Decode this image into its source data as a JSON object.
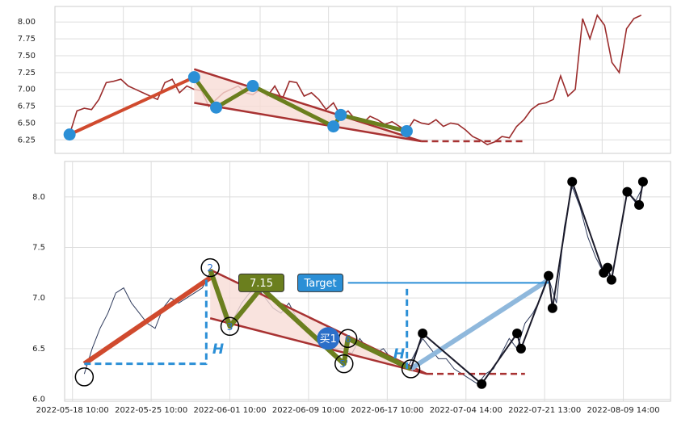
{
  "chart_data": [
    {
      "type": "line",
      "color": "#9b2c2c",
      "xlim": [
        -2,
        82
      ],
      "ylim": [
        6.05,
        8.23
      ],
      "grid": true,
      "yticks": [
        {
          "value": 6.25,
          "label": "6.25"
        },
        {
          "value": 6.5,
          "label": "6.50"
        },
        {
          "value": 6.75,
          "label": "6.75"
        },
        {
          "value": 7.0,
          "label": "7.00"
        },
        {
          "value": 7.25,
          "label": "7.25"
        },
        {
          "value": 7.5,
          "label": "7.50"
        },
        {
          "value": 7.75,
          "label": "7.75"
        },
        {
          "value": 8.0,
          "label": "8.00"
        }
      ],
      "values": [
        6.33,
        6.68,
        6.72,
        6.7,
        6.85,
        7.1,
        7.12,
        7.15,
        7.05,
        7.0,
        6.95,
        6.9,
        6.85,
        7.1,
        7.15,
        6.95,
        7.05,
        7.0,
        6.98,
        6.75,
        6.85,
        6.95,
        7.0,
        7.05,
        6.95,
        6.92,
        7.0,
        6.9,
        7.05,
        6.85,
        7.12,
        7.1,
        6.9,
        6.95,
        6.85,
        6.7,
        6.8,
        6.6,
        6.68,
        6.55,
        6.5,
        6.6,
        6.55,
        6.48,
        6.52,
        6.45,
        6.38,
        6.55,
        6.5,
        6.48,
        6.55,
        6.45,
        6.5,
        6.48,
        6.4,
        6.3,
        6.25,
        6.18,
        6.22,
        6.3,
        6.28,
        6.45,
        6.55,
        6.7,
        6.78,
        6.8,
        6.85,
        7.2,
        6.9,
        7.0,
        8.05,
        7.75,
        8.1,
        7.95,
        7.4,
        7.25,
        7.9,
        8.05,
        8.1
      ],
      "lines": [
        {
          "x": [
            17,
            48,
            17
          ],
          "y": [
            7.3,
            6.23,
            6.8
          ],
          "color": "#f8dcd6",
          "fill": true
        },
        {
          "x": [
            0,
            17
          ],
          "y": [
            6.33,
            7.18
          ],
          "color": "#d04a2e",
          "width": 4
        },
        {
          "x": [
            17,
            48
          ],
          "y": [
            7.3,
            6.23
          ],
          "color": "#a83232",
          "width": 2.5
        },
        {
          "x": [
            17,
            48
          ],
          "y": [
            6.8,
            6.23
          ],
          "color": "#a83232",
          "width": 2.5
        },
        {
          "x": [
            48,
            62
          ],
          "y": [
            6.23,
            6.23
          ],
          "color": "#a83232",
          "width": 2.5,
          "dashed": true
        },
        {
          "x": [
            17,
            20,
            25,
            36,
            37,
            46
          ],
          "y": [
            7.18,
            6.73,
            7.05,
            6.45,
            6.62,
            6.38
          ],
          "color": "#6b7f1e",
          "width": 5
        }
      ],
      "points": {
        "x": [
          0,
          17,
          20,
          25,
          36,
          37,
          46
        ],
        "y": [
          6.33,
          7.18,
          6.73,
          7.05,
          6.45,
          6.62,
          6.38
        ],
        "color": "#2b8fd6"
      }
    },
    {
      "type": "line",
      "color": "#2f3b5c",
      "xlim": [
        -2,
        152
      ],
      "ylim": [
        5.98,
        8.35
      ],
      "grid": true,
      "yticks": [
        {
          "value": 6.0,
          "label": "6.0"
        },
        {
          "value": 6.5,
          "label": "6.5"
        },
        {
          "value": 7.0,
          "label": "7.0"
        },
        {
          "value": 7.5,
          "label": "7.5"
        },
        {
          "value": 8.0,
          "label": "8.0"
        }
      ],
      "xticks": [
        {
          "value": 0,
          "label": "2022-05-18 10:00"
        },
        {
          "value": 20,
          "label": "2022-05-25 10:00"
        },
        {
          "value": 40,
          "label": "2022-06-01 10:00"
        },
        {
          "value": 60,
          "label": "2022-06-09 10:00"
        },
        {
          "value": 80,
          "label": "2022-06-17 10:00"
        },
        {
          "value": 100,
          "label": "2022-07-04 14:00"
        },
        {
          "value": 120,
          "label": "2022-07-21 13:00"
        },
        {
          "value": 140,
          "label": "2022-08-09 14:00"
        }
      ],
      "x": [
        3,
        5,
        7,
        9,
        11,
        13,
        15,
        17,
        19,
        21,
        23,
        25,
        27,
        29,
        31,
        33,
        35,
        37,
        39,
        41,
        43,
        45,
        47,
        49,
        51,
        53,
        55,
        57,
        59,
        61,
        63,
        65,
        67,
        69,
        71,
        73,
        75,
        77,
        79,
        81,
        83,
        85,
        87,
        89,
        91,
        93,
        95,
        97,
        99,
        101,
        103,
        105,
        107,
        109,
        111,
        113,
        115,
        117,
        119,
        121,
        123,
        125,
        127,
        129,
        131,
        133,
        135,
        137,
        139,
        141,
        143,
        145
      ],
      "values": [
        6.25,
        6.5,
        6.7,
        6.85,
        7.05,
        7.1,
        6.95,
        6.85,
        6.75,
        6.7,
        6.9,
        7.0,
        6.95,
        7.0,
        7.05,
        7.1,
        7.25,
        7.0,
        6.75,
        6.8,
        6.95,
        7.05,
        7.1,
        7.0,
        6.9,
        6.85,
        6.95,
        6.8,
        6.7,
        6.65,
        6.6,
        6.55,
        6.5,
        6.5,
        6.45,
        6.6,
        6.5,
        6.45,
        6.5,
        6.4,
        6.35,
        6.3,
        6.45,
        6.6,
        6.5,
        6.4,
        6.4,
        6.3,
        6.25,
        6.2,
        6.15,
        6.25,
        6.3,
        6.45,
        6.6,
        6.5,
        6.75,
        6.85,
        7.0,
        7.2,
        6.95,
        7.7,
        8.1,
        7.9,
        7.6,
        7.4,
        7.25,
        7.2,
        7.6,
        8.05,
        7.95,
        8.1
      ],
      "lines": [
        {
          "x": [
            35,
            90,
            35
          ],
          "y": [
            7.28,
            6.25,
            6.8
          ],
          "color": "#f8dcd6",
          "fill": true
        },
        {
          "x": [
            35,
            90
          ],
          "y": [
            7.28,
            6.25
          ],
          "color": "#a83232",
          "width": 2.5
        },
        {
          "x": [
            35,
            90
          ],
          "y": [
            6.8,
            6.25
          ],
          "color": "#a83232",
          "width": 2.5
        },
        {
          "x": [
            90,
            115
          ],
          "y": [
            6.25,
            6.25
          ],
          "color": "#a83232",
          "width": 2.5,
          "dashed": true
        },
        {
          "x": [
            3,
            35
          ],
          "y": [
            6.35,
            7.2
          ],
          "color": "#d04a2e",
          "width": 6
        },
        {
          "x": [
            35,
            40,
            48,
            69,
            70,
            86
          ],
          "y": [
            7.28,
            6.72,
            7.1,
            6.35,
            6.6,
            6.3
          ],
          "color": "#6b7f1e",
          "width": 6
        },
        {
          "x": [
            3,
            34,
            34
          ],
          "y": [
            6.35,
            6.35,
            7.2
          ],
          "color": "#2b8fd6",
          "width": 3,
          "dashed": true
        },
        {
          "x": [
            85,
            85
          ],
          "y": [
            6.3,
            7.1
          ],
          "color": "#2b8fd6",
          "width": 3,
          "dashed": true
        },
        {
          "x": [
            86,
            121
          ],
          "y": [
            6.3,
            7.18
          ],
          "color": "#8fb8dc",
          "width": 6
        },
        {
          "x": [
            70,
            121
          ],
          "y": [
            7.15,
            7.15
          ],
          "color": "#2b8fd6",
          "width": 2
        },
        {
          "x": [
            86,
            89,
            104,
            113,
            114,
            121,
            122,
            127,
            135,
            136,
            137,
            141,
            144,
            145
          ],
          "y": [
            6.3,
            6.65,
            6.15,
            6.65,
            6.5,
            7.22,
            6.9,
            8.15,
            7.25,
            7.3,
            7.18,
            8.05,
            7.92,
            8.15
          ],
          "color": "#1a1a2a",
          "width": 2
        }
      ],
      "points": {
        "x": [
          89,
          104,
          113,
          114,
          121,
          122,
          127,
          135,
          136,
          137,
          141,
          144,
          145
        ],
        "y": [
          6.65,
          6.15,
          6.65,
          6.5,
          7.22,
          6.9,
          8.15,
          7.25,
          7.3,
          7.18,
          8.05,
          7.92,
          8.15
        ],
        "color": "#000000"
      },
      "rings": [
        {
          "x": 3,
          "y": 6.22
        },
        {
          "x": 35,
          "y": 7.3,
          "label": "2"
        },
        {
          "x": 40,
          "y": 6.72,
          "label": "3"
        },
        {
          "x": 69,
          "y": 6.35,
          "label": "5'"
        },
        {
          "x": 70,
          "y": 6.6,
          "label": "6"
        },
        {
          "x": 86,
          "y": 6.3
        }
      ],
      "annotations": [
        {
          "text": "7.15",
          "x": 48,
          "y": 7.15,
          "color": "#6b7f1e",
          "shape": "box"
        },
        {
          "text": "Target",
          "x": 63,
          "y": 7.15,
          "color": "#2b8fd6",
          "shape": "box"
        },
        {
          "text": "买1",
          "x": 65,
          "y": 6.6,
          "color": "#2b6fc9",
          "shape": "circle"
        },
        {
          "text": "H",
          "x": 37,
          "y": 6.5,
          "color": "#2b8fd6",
          "shape": "text"
        },
        {
          "text": "H",
          "x": 83,
          "y": 6.45,
          "color": "#2b8fd6",
          "shape": "text"
        }
      ]
    }
  ]
}
